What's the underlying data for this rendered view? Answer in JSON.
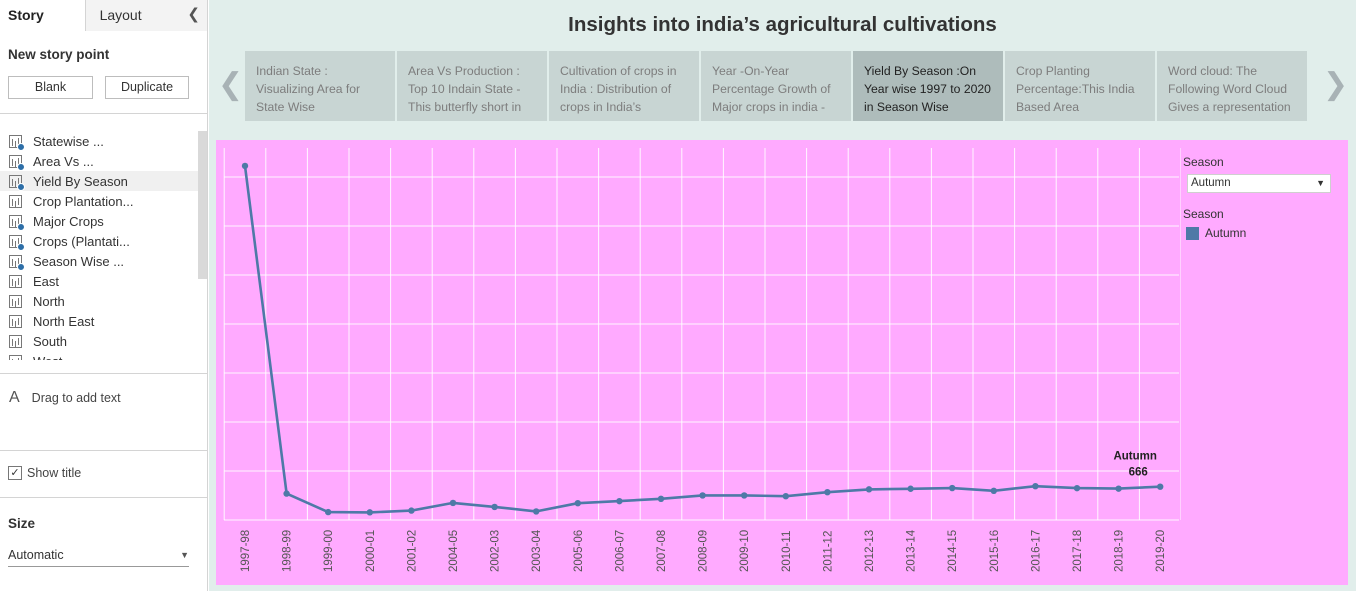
{
  "left_panel": {
    "tabs": {
      "story": "Story",
      "layout": "Layout"
    },
    "collapse_icon": "chevron-left-icon",
    "new_story_point": "New story point",
    "buttons": {
      "blank": "Blank",
      "duplicate": "Duplicate"
    },
    "sheets": [
      {
        "label": "Statewise ...",
        "checked": true
      },
      {
        "label": " Area Vs ...",
        "checked": true
      },
      {
        "label": "Yield By Season",
        "checked": true
      },
      {
        "label": "Crop Plantation...",
        "checked": false
      },
      {
        "label": "Major Crops",
        "checked": true
      },
      {
        "label": "Crops (Plantati...",
        "checked": true
      },
      {
        "label": "Season Wise ...",
        "checked": true
      },
      {
        "label": "East",
        "checked": false
      },
      {
        "label": "North",
        "checked": false
      },
      {
        "label": "North East",
        "checked": false
      },
      {
        "label": "South",
        "checked": false
      },
      {
        "label": "West",
        "checked": false
      }
    ],
    "drag_text": "Drag to add text",
    "show_title": "Show title",
    "show_title_checked": true,
    "size_label": "Size",
    "size_value": "Automatic"
  },
  "story": {
    "title": "Insights into india’s agricultural cultivations",
    "points": [
      {
        "text": "Indian State : Visualizing Area for State Wise"
      },
      {
        "text": "Area Vs Production : Top 10 Indain State - This butterfly short in"
      },
      {
        "text": "Cultivation of crops in India : Distribution of crops in India’s"
      },
      {
        "text": "Year -On-Year Percentage Growth of Major crops in india -"
      },
      {
        "text": "Yield By Season :On Year wise 1997 to 2020 in Season Wise"
      },
      {
        "text": "Crop Planting Percentage:This India Based Area"
      },
      {
        "text": "Word cloud: The Following Word Cloud Gives a representation"
      }
    ],
    "active_point": 4
  },
  "colors": {
    "line": "#4e79a7",
    "viz_bg": "#ffaaff",
    "story_bg": "#e1eeeb"
  },
  "legend": {
    "filter_title": "Season",
    "filter_value": "Autumn",
    "color_title": "Season",
    "items": [
      "Autumn"
    ]
  },
  "chart_data": {
    "type": "line",
    "x": [
      "1997-98",
      "1998-99",
      "1999-00",
      "2000-01",
      "2001-02",
      "2004-05",
      "2002-03",
      "2003-04",
      "2005-06",
      "2006-07",
      "2007-08",
      "2008-09",
      "2009-10",
      "2010-11",
      "2011-12",
      "2012-13",
      "2013-14",
      "2014-15",
      "2015-16",
      "2016-17",
      "2017-18",
      "2018-19",
      "2019-20"
    ],
    "series": [
      {
        "name": "Autumn",
        "values": [
          7082,
          528,
          158,
          153,
          188,
          341,
          261,
          171,
          336,
          377,
          424,
          491,
          491,
          476,
          556,
          613,
          625,
          639,
          584,
          676,
          637,
          627,
          666
        ]
      }
    ],
    "ylim": [
      0,
      7400
    ],
    "grid": true,
    "annotation": {
      "series": "Autumn",
      "value": "666"
    }
  }
}
